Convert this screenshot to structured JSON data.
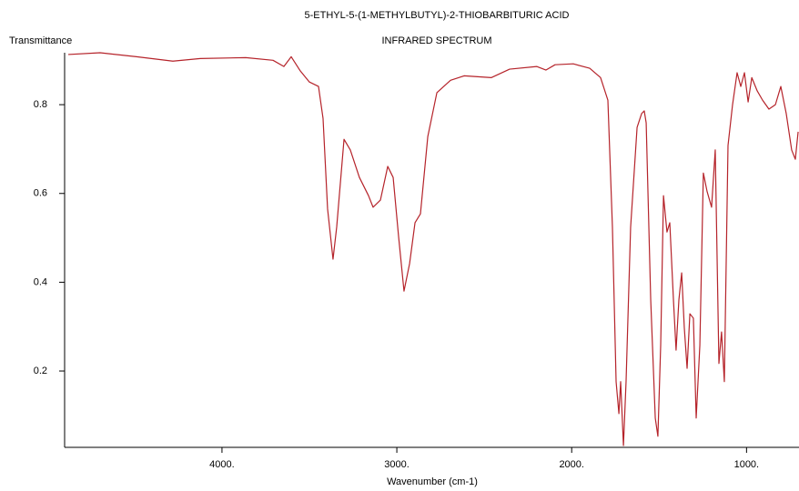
{
  "chart_data": {
    "type": "line",
    "title": "5-ETHYL-5-(1-METHYLBUTYL)-2-THIOBARBITURIC ACID",
    "subtitle": "INFRARED SPECTRUM",
    "y_label": "Transmittance",
    "x_label": "Wavenumber (cm-1)",
    "xlim": [
      4900,
      700
    ],
    "ylim": [
      0.028,
      0.917
    ],
    "xticks": [
      {
        "value": 4000,
        "label": "4000."
      },
      {
        "value": 3000,
        "label": "3000."
      },
      {
        "value": 2000,
        "label": "2000."
      },
      {
        "value": 1000,
        "label": "1000."
      }
    ],
    "yticks": [
      0.2,
      0.4,
      0.6,
      0.8
    ],
    "grid": false,
    "series": [
      {
        "color": "#b5232a",
        "x": [
          4879,
          4697,
          4489,
          4281,
          4124,
          3864,
          3708,
          3646,
          3604,
          3552,
          3500,
          3448,
          3422,
          3396,
          3365,
          3344,
          3302,
          3266,
          3214,
          3162,
          3136,
          3094,
          3052,
          3021,
          2990,
          2959,
          2927,
          2896,
          2865,
          2823,
          2771,
          2693,
          2615,
          2459,
          2355,
          2199,
          2147,
          2095,
          1991,
          1897,
          1835,
          1793,
          1767,
          1746,
          1730,
          1720,
          1704,
          1689,
          1663,
          1626,
          1600,
          1585,
          1574,
          1548,
          1522,
          1507,
          1491,
          1475,
          1455,
          1439,
          1418,
          1403,
          1387,
          1371,
          1356,
          1340,
          1324,
          1304,
          1288,
          1267,
          1247,
          1226,
          1200,
          1179,
          1158,
          1143,
          1127,
          1106,
          1080,
          1054,
          1033,
          1012,
          991,
          970,
          939,
          908,
          872,
          835,
          804,
          773,
          742,
          721,
          705
        ],
        "values": [
          0.913,
          0.917,
          0.908,
          0.898,
          0.904,
          0.906,
          0.9,
          0.886,
          0.908,
          0.876,
          0.851,
          0.841,
          0.769,
          0.565,
          0.452,
          0.524,
          0.722,
          0.698,
          0.636,
          0.595,
          0.569,
          0.585,
          0.661,
          0.636,
          0.503,
          0.38,
          0.442,
          0.534,
          0.554,
          0.728,
          0.827,
          0.855,
          0.865,
          0.861,
          0.88,
          0.886,
          0.878,
          0.89,
          0.892,
          0.882,
          0.861,
          0.81,
          0.524,
          0.176,
          0.104,
          0.176,
          0.032,
          0.176,
          0.524,
          0.749,
          0.78,
          0.786,
          0.759,
          0.36,
          0.094,
          0.053,
          0.258,
          0.595,
          0.513,
          0.534,
          0.36,
          0.247,
          0.36,
          0.421,
          0.298,
          0.206,
          0.329,
          0.319,
          0.094,
          0.258,
          0.646,
          0.605,
          0.569,
          0.698,
          0.217,
          0.288,
          0.176,
          0.708,
          0.8,
          0.872,
          0.841,
          0.872,
          0.806,
          0.861,
          0.831,
          0.81,
          0.79,
          0.8,
          0.841,
          0.78,
          0.698,
          0.677,
          0.739
        ]
      }
    ]
  }
}
